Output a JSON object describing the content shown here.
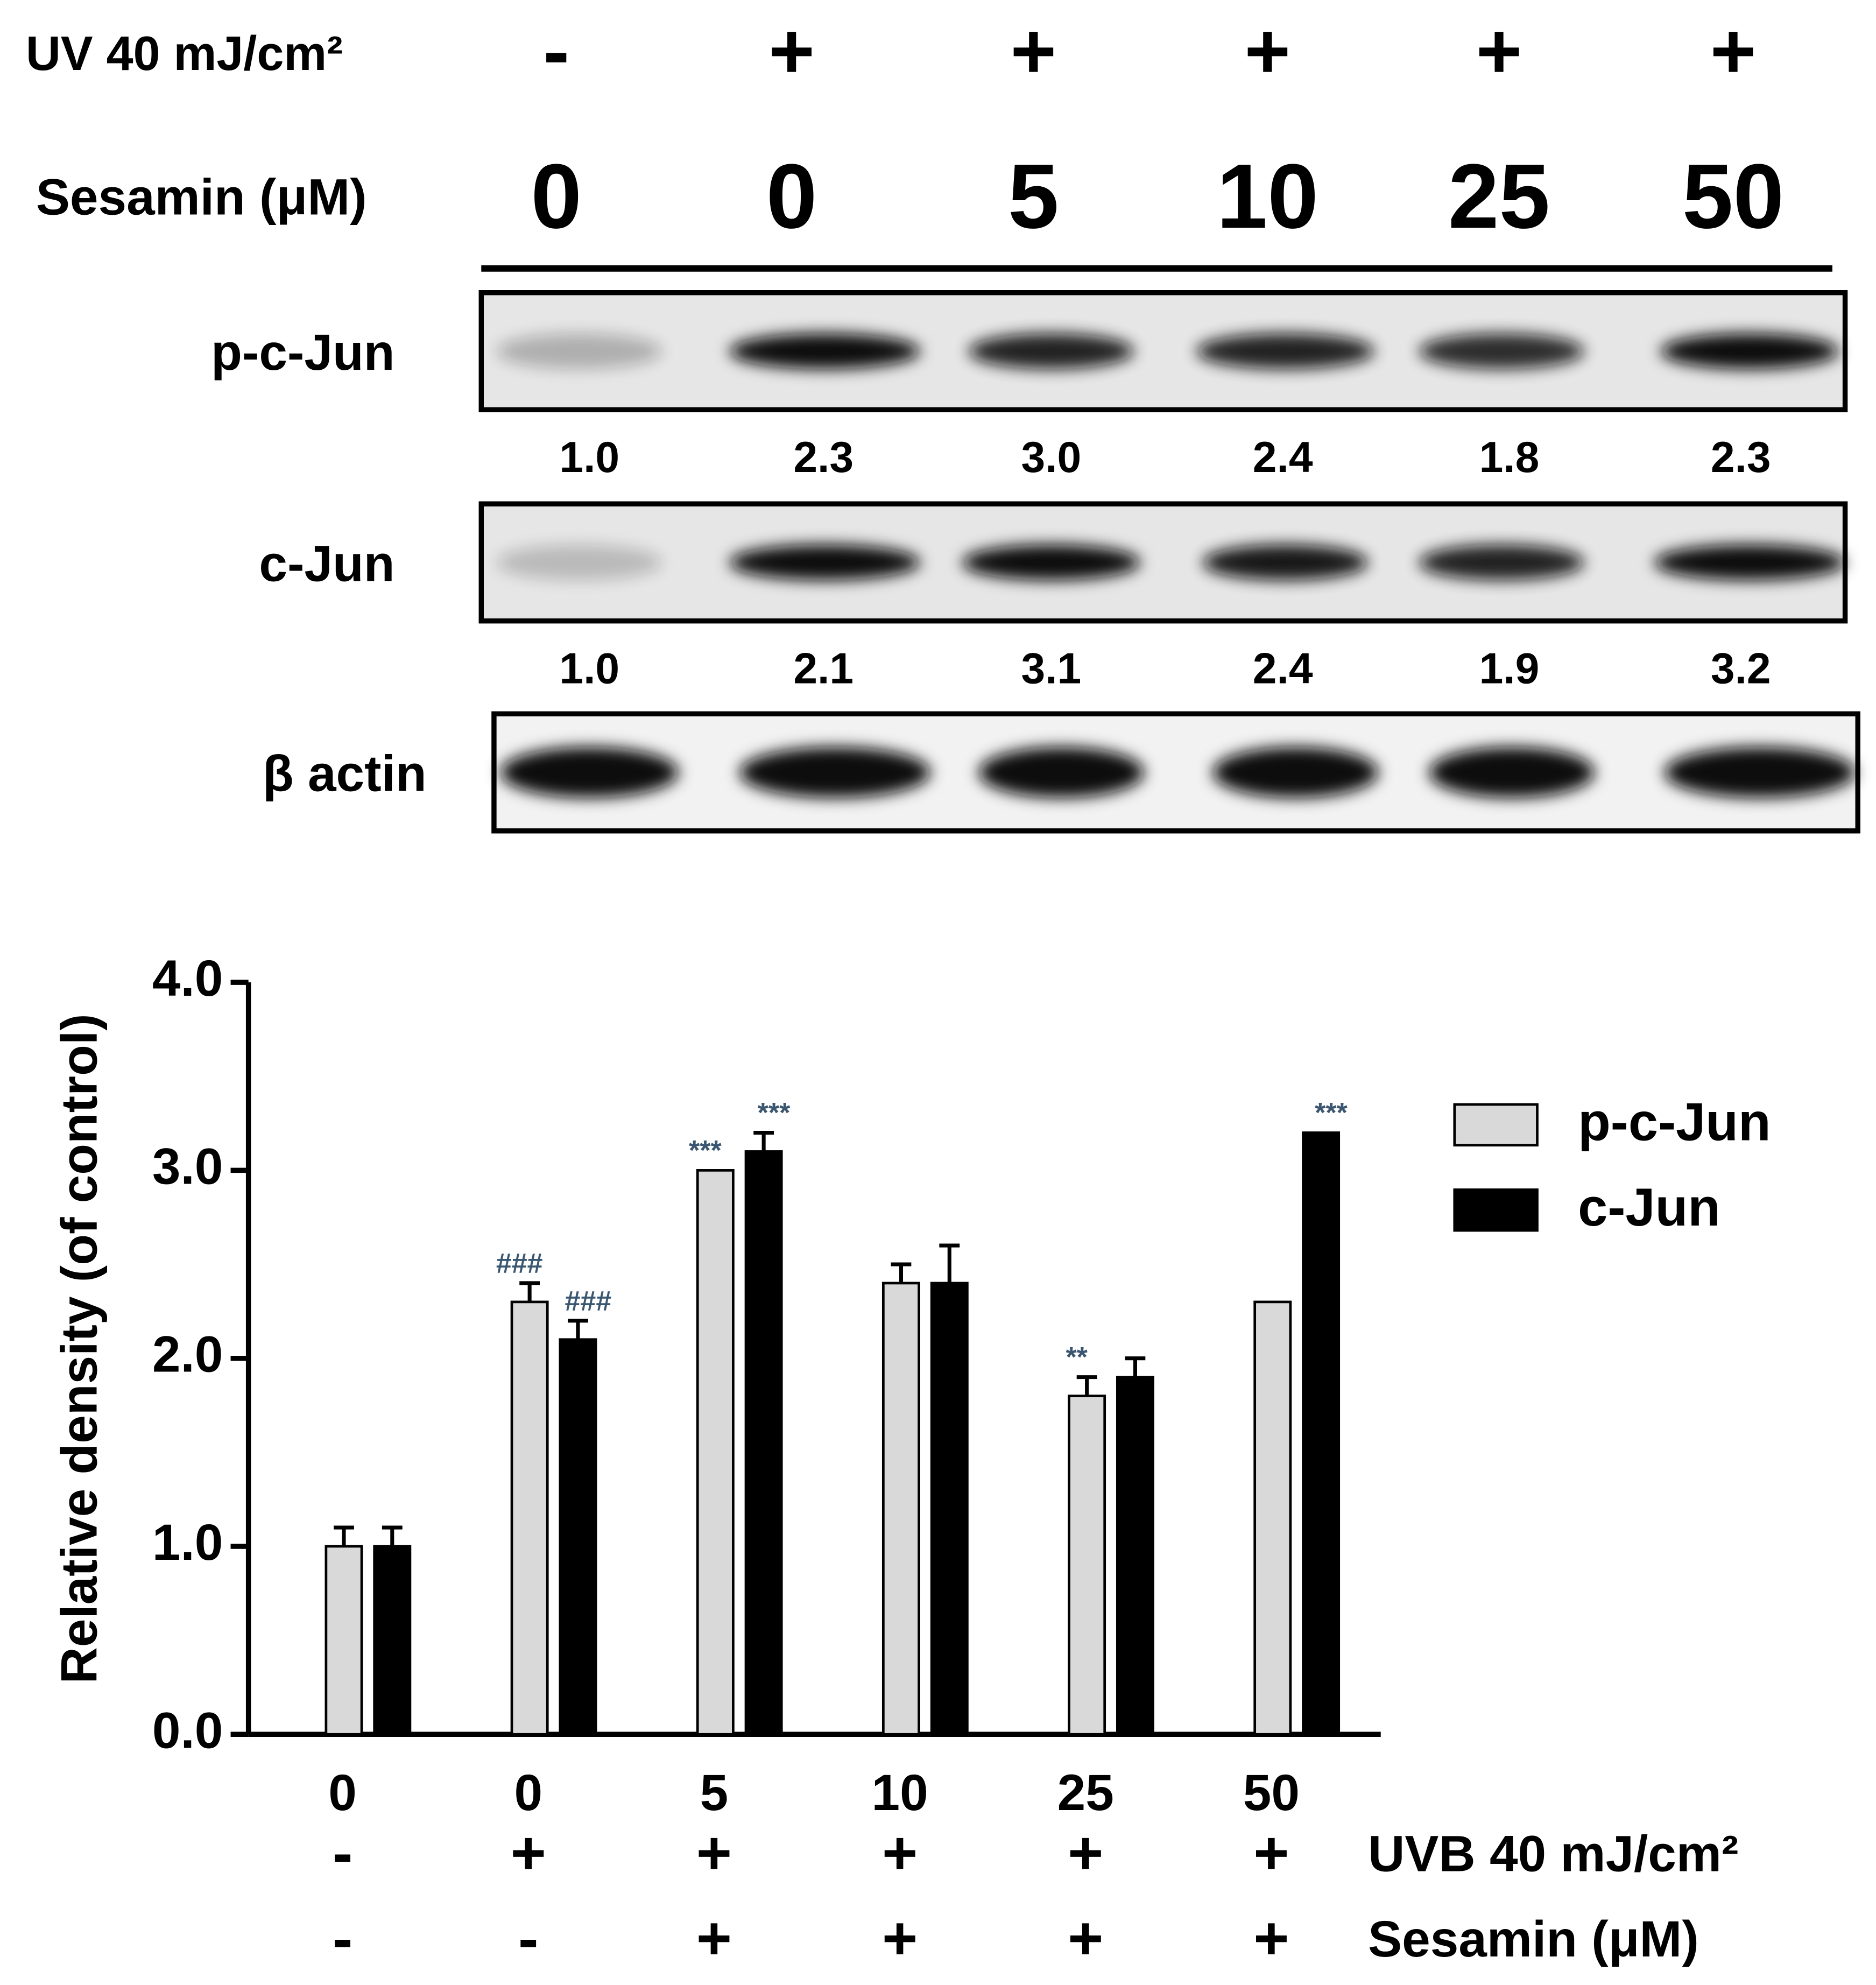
{
  "blot": {
    "uv_label": "UV 40 mJ/cm²",
    "uv_signs": [
      "-",
      "+",
      "+",
      "+",
      "+",
      "+"
    ],
    "sesamin_label": "Sesamin (μM)",
    "doses": [
      "0",
      "0",
      "5",
      "10",
      "25",
      "50"
    ],
    "bands": [
      {
        "name": "p-c-Jun",
        "ratios": [
          "1.0",
          "2.3",
          "3.0",
          "2.4",
          "1.8",
          "2.3"
        ]
      },
      {
        "name": "c-Jun",
        "ratios": [
          "1.0",
          "2.1",
          "3.1",
          "2.4",
          "1.9",
          "3.2"
        ]
      },
      {
        "name": "β actin"
      }
    ]
  },
  "chart_data": {
    "type": "bar",
    "ylabel": "Relative density (of control)",
    "categories": [
      "0",
      "0",
      "5",
      "10",
      "25",
      "50"
    ],
    "x_rows": [
      {
        "label": "UVB 40 mJ/cm²",
        "values": [
          "-",
          "+",
          "+",
          "+",
          "+",
          "+"
        ]
      },
      {
        "label": "Sesamin (μM)",
        "values": [
          "-",
          "-",
          "+",
          "+",
          "+",
          "+"
        ]
      }
    ],
    "series": [
      {
        "name": "p-c-Jun",
        "color": "#d9d9d9",
        "values": [
          1.0,
          2.3,
          3.0,
          2.4,
          1.8,
          2.3
        ],
        "errors": [
          0.1,
          0.1,
          0,
          0.1,
          0.1,
          0
        ],
        "annotations": [
          null,
          "###",
          "***",
          null,
          "**",
          null
        ]
      },
      {
        "name": "c-Jun",
        "color": "#000000",
        "values": [
          1.0,
          2.1,
          3.1,
          2.4,
          1.9,
          3.2
        ],
        "errors": [
          0.1,
          0.1,
          0.1,
          0.2,
          0.1,
          0
        ],
        "annotations": [
          null,
          "###",
          "***",
          null,
          null,
          "***"
        ]
      }
    ],
    "ylim": [
      0,
      4
    ],
    "yticks": [
      {
        "value": 0,
        "label": "0.0"
      },
      {
        "value": 1,
        "label": "1.0"
      },
      {
        "value": 2,
        "label": "2.0"
      },
      {
        "value": 3,
        "label": "3.0"
      },
      {
        "value": 4,
        "label": "4.0"
      }
    ],
    "legend": "upper right"
  }
}
